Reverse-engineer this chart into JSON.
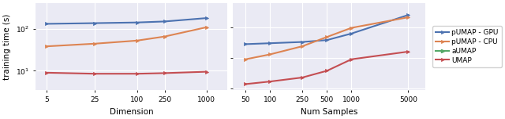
{
  "plot1": {
    "xlabel": "Dimension",
    "xticks": [
      5,
      25,
      100,
      250,
      1000
    ],
    "xticklabels": [
      "5",
      "25",
      "100",
      "250",
      "1000"
    ],
    "xlim": [
      3.5,
      2000
    ],
    "ylim": [
      3.5,
      400
    ],
    "series": {
      "pUMAP - GPU": {
        "x": [
          5,
          25,
          100,
          250,
          1000
        ],
        "y": [
          130,
          135,
          140,
          148,
          178
        ],
        "color": "#4C72B0",
        "marker": ">"
      },
      "pUMAP - CPU": {
        "x": [
          5,
          25,
          100,
          250,
          1000
        ],
        "y": [
          38,
          44,
          52,
          65,
          108
        ],
        "color": "#DD8452",
        "marker": ">"
      },
      "aUMAP": {
        "x": [],
        "y": [],
        "color": "#55A868",
        "marker": ">"
      },
      "UMAP": {
        "x": [
          5,
          25,
          100,
          250,
          1000
        ],
        "y": [
          9.0,
          8.5,
          8.5,
          8.8,
          9.5
        ],
        "color": "#C44E52",
        "marker": ">"
      }
    }
  },
  "plot2": {
    "xlabel": "Num Samples",
    "xticks": [
      50,
      100,
      250,
      500,
      1000,
      5000
    ],
    "xticklabels": [
      "50",
      "100",
      "250",
      "500",
      "1000",
      "5000"
    ],
    "xlim": [
      35,
      8000
    ],
    "ylim": [
      0.9,
      600
    ],
    "series": {
      "pUMAP - GPU": {
        "x": [
          50,
          100,
          250,
          500,
          1000,
          5000
        ],
        "y": [
          28,
          30,
          33,
          38,
          62,
          250
        ],
        "color": "#4C72B0",
        "marker": ">"
      },
      "pUMAP - CPU": {
        "x": [
          50,
          100,
          250,
          500,
          1000,
          5000
        ],
        "y": [
          9.0,
          13,
          24,
          48,
          95,
          210
        ],
        "color": "#DD8452",
        "marker": ">"
      },
      "aUMAP": {
        "x": [],
        "y": [],
        "color": "#55A868",
        "marker": ">"
      },
      "UMAP": {
        "x": [
          50,
          100,
          250,
          500,
          1000,
          5000
        ],
        "y": [
          1.4,
          1.7,
          2.3,
          3.8,
          9.0,
          16
        ],
        "color": "#C44E52",
        "marker": ">"
      }
    }
  },
  "ylabel": "training time (s)",
  "legend_order": [
    "pUMAP - GPU",
    "pUMAP - CPU",
    "aUMAP",
    "UMAP"
  ],
  "bg_color": "#EAEAF4",
  "linewidth": 1.5,
  "markersize": 3.0
}
